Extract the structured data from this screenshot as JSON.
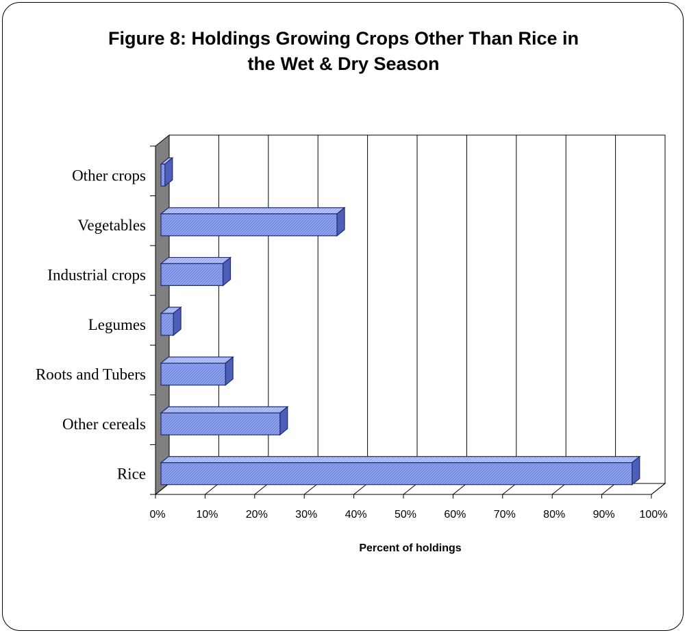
{
  "chart_data": {
    "type": "bar",
    "orientation": "horizontal",
    "style": "3d",
    "title_lines": [
      "Figure 8: Holdings Growing Crops Other Than Rice in",
      "the Wet & Dry Season"
    ],
    "categories": [
      "Rice",
      "Other cereals",
      "Roots and Tubers",
      "Legumes",
      "Industrial crops",
      "Vegetables",
      "Other crops"
    ],
    "values": [
      95,
      24,
      13,
      2.5,
      12.5,
      35.5,
      0.8
    ],
    "xlabel": "Percent of holdings",
    "ylabel": "",
    "xlim": [
      0,
      100
    ],
    "x_ticks": [
      "0%",
      "10%",
      "20%",
      "30%",
      "40%",
      "50%",
      "60%",
      "70%",
      "80%",
      "90%",
      "100%"
    ],
    "grid": true,
    "legend": "none",
    "colors": {
      "bar_fill": "#8FA3EE",
      "bar_top": "#B7C4F5",
      "bar_side": "#4F5FB8",
      "bar_outline": "#1F2A70",
      "floor_wall": "#808080"
    }
  }
}
